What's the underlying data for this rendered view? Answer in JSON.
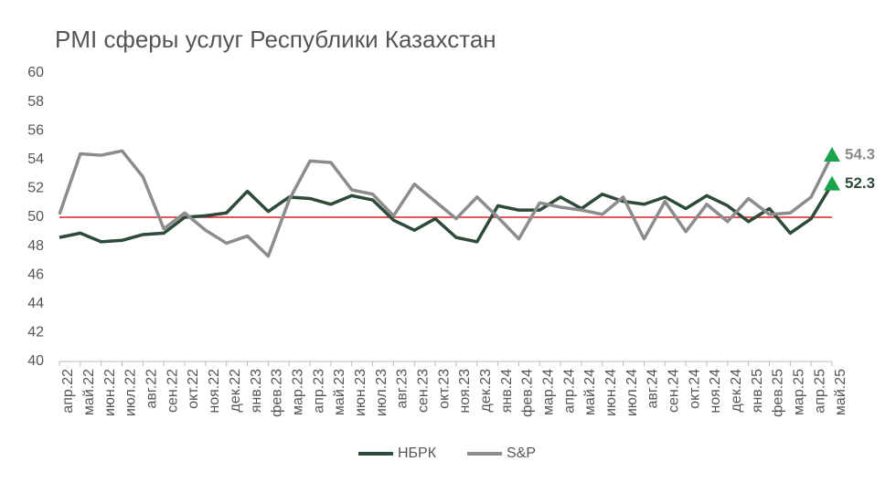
{
  "chart_data": {
    "type": "line",
    "title": "PMI сферы услуг Республики Казахстан",
    "categories": [
      "апр.22",
      "май.22",
      "июн.22",
      "июл.22",
      "авг.22",
      "сен.22",
      "окт.22",
      "ноя.22",
      "дек.22",
      "янв.23",
      "фев.23",
      "мар.23",
      "апр.23",
      "май.23",
      "июн.23",
      "июл.23",
      "авг.23",
      "сен.23",
      "окт.23",
      "ноя.23",
      "дек.23",
      "янв.24",
      "фев.24",
      "мар.24",
      "апр.24",
      "май.24",
      "июн.24",
      "июл.24",
      "авг.24",
      "сен.24",
      "окт.24",
      "ноя.24",
      "дек.24",
      "янв.25",
      "фев.25",
      "мар.25",
      "апр.25",
      "май.25"
    ],
    "series": [
      {
        "name": "НБРК",
        "color": "#2e4a38",
        "values": [
          48.6,
          48.9,
          48.3,
          48.4,
          48.8,
          48.9,
          50.0,
          50.1,
          50.3,
          51.8,
          50.4,
          51.4,
          51.3,
          50.9,
          51.5,
          51.2,
          49.8,
          49.1,
          49.9,
          48.6,
          48.3,
          50.8,
          50.5,
          50.5,
          51.4,
          50.6,
          51.6,
          51.1,
          50.9,
          51.4,
          50.6,
          51.5,
          50.8,
          49.7,
          50.6,
          48.9,
          49.9,
          52.3
        ]
      },
      {
        "name": "S&P",
        "color": "#8c8c8c",
        "values": [
          50.2,
          54.4,
          54.3,
          54.6,
          52.8,
          49.2,
          50.3,
          49.1,
          48.2,
          48.7,
          47.3,
          51.2,
          53.9,
          53.8,
          51.9,
          51.6,
          50.1,
          52.3,
          51.1,
          49.9,
          51.4,
          50.0,
          48.5,
          51.0,
          50.7,
          50.5,
          50.2,
          51.4,
          48.5,
          51.1,
          49.0,
          50.9,
          49.7,
          51.3,
          50.2,
          50.3,
          51.4,
          54.3
        ]
      }
    ],
    "ylim": [
      40,
      60
    ],
    "yticks": [
      40,
      42,
      44,
      46,
      48,
      50,
      52,
      54,
      56,
      58,
      60
    ],
    "reference_line": {
      "value": 50,
      "color": "#d62020"
    },
    "last_value_marker_color": "#1aa34a",
    "legend": "bottom",
    "grid": false
  }
}
